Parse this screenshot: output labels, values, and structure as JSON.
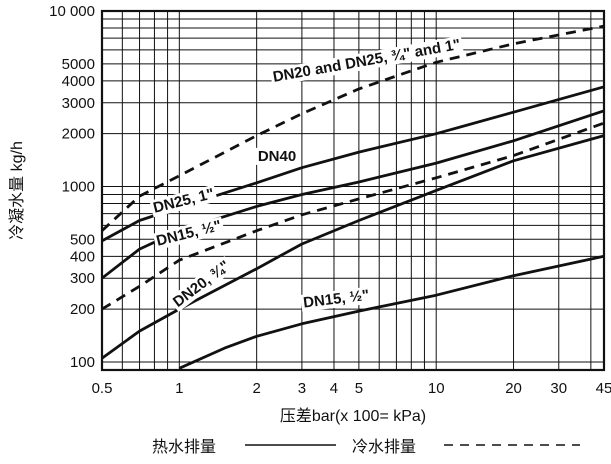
{
  "chart_data": {
    "type": "line",
    "title": "",
    "xlabel": "压差bar(x 100= kPa)",
    "ylabel": "冷凝水量 kg/h",
    "x_scale": "log",
    "y_scale": "log",
    "xlim": [
      0.5,
      45
    ],
    "ylim": [
      90,
      10000
    ],
    "grid": true,
    "x_ticks": [
      {
        "value": 0.5,
        "label": "0.5"
      },
      {
        "value": 1,
        "label": "1"
      },
      {
        "value": 2,
        "label": "2"
      },
      {
        "value": 3,
        "label": "3"
      },
      {
        "value": 4,
        "label": "4"
      },
      {
        "value": 5,
        "label": "5"
      },
      {
        "value": 10,
        "label": "10"
      },
      {
        "value": 20,
        "label": "20"
      },
      {
        "value": 30,
        "label": "30"
      },
      {
        "value": 45,
        "label": "45"
      }
    ],
    "y_ticks": [
      {
        "value": 100,
        "label": "100"
      },
      {
        "value": 200,
        "label": "200"
      },
      {
        "value": 300,
        "label": "300"
      },
      {
        "value": 400,
        "label": "400"
      },
      {
        "value": 500,
        "label": "500"
      },
      {
        "value": 1000,
        "label": "1000"
      },
      {
        "value": 2000,
        "label": "2000"
      },
      {
        "value": 3000,
        "label": "3000"
      },
      {
        "value": 4000,
        "label": "4000"
      },
      {
        "value": 5000,
        "label": "5000"
      },
      {
        "value": 10000,
        "label": "10 000"
      }
    ],
    "series": [
      {
        "name": "DN20 and DN25, ¾\" and 1\"",
        "style": "cold",
        "x": [
          0.5,
          0.7,
          1,
          2,
          3,
          5,
          10,
          20,
          45
        ],
        "y": [
          560,
          880,
          1150,
          1950,
          2600,
          3600,
          5100,
          6500,
          8200
        ]
      },
      {
        "name": "DN40",
        "style": "hot",
        "x": [
          0.5,
          0.7,
          1,
          2,
          3,
          5,
          10,
          20,
          45
        ],
        "y": [
          490,
          640,
          760,
          1050,
          1280,
          1570,
          2000,
          2650,
          3700
        ]
      },
      {
        "name": "DN25, 1\"",
        "style": "hot",
        "x": [
          0.5,
          0.7,
          1,
          2,
          3,
          5,
          10,
          20,
          45
        ],
        "y": [
          300,
          440,
          560,
          770,
          900,
          1060,
          1360,
          1820,
          2700
        ]
      },
      {
        "name": "DN15, ½\"",
        "style": "cold",
        "x": [
          0.5,
          0.7,
          1,
          2,
          3,
          5,
          10,
          20,
          45
        ],
        "y": [
          200,
          270,
          380,
          560,
          690,
          850,
          1120,
          1500,
          2300
        ]
      },
      {
        "name": "DN20, ¾\"",
        "style": "hot",
        "x": [
          0.5,
          0.7,
          1,
          2,
          3,
          5,
          10,
          20,
          45
        ],
        "y": [
          105,
          150,
          200,
          340,
          470,
          640,
          950,
          1400,
          1950
        ]
      },
      {
        "name": "DN15, ½\"",
        "style": "hot",
        "x": [
          1,
          1.5,
          2,
          3,
          5,
          10,
          20,
          45
        ],
        "y": [
          92,
          120,
          140,
          165,
          195,
          240,
          310,
          400
        ]
      }
    ],
    "legend": [
      {
        "label": "热水排量",
        "style": "hot"
      },
      {
        "label": "冷水排量",
        "style": "cold"
      }
    ],
    "legend_position": "bottom-center"
  }
}
